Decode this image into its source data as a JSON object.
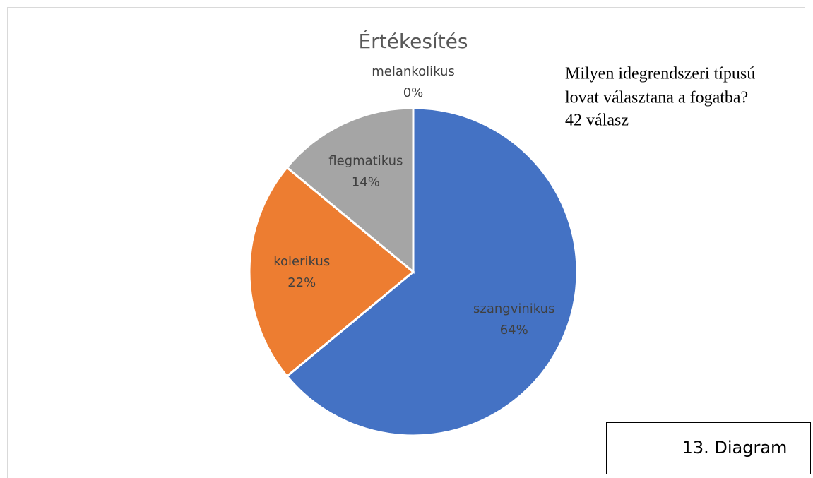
{
  "chart_data": {
    "type": "pie",
    "title": "Értékesítés",
    "categories": [
      "szangvinikus",
      "kolerikus",
      "flegmatikus",
      "melankolikus"
    ],
    "values": [
      64,
      22,
      14,
      0
    ],
    "value_labels": [
      "64%",
      "22%",
      "14%",
      "0%"
    ],
    "colors": [
      "#4472c4",
      "#ed7d31",
      "#a5a5a5",
      "#ffc000"
    ],
    "annotations": [
      "Milyen idegrendszeri típusú",
      "lovat választana a fogatba?",
      "42 válasz"
    ],
    "caption": "13. Diagram"
  }
}
